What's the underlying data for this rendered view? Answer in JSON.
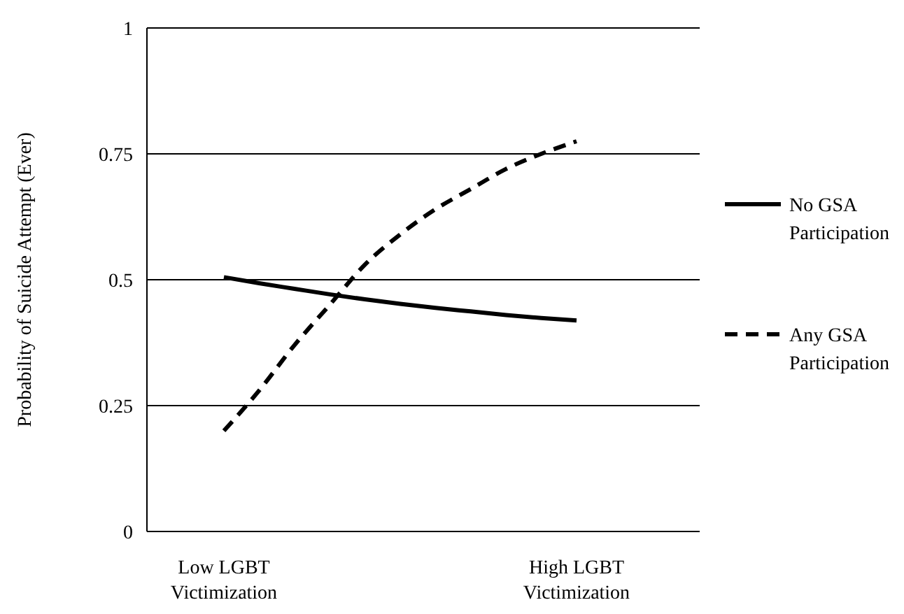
{
  "chart_data": {
    "type": "line",
    "ylabel": "Probability of Suicide Attempt (Ever)",
    "categories": [
      "Low LGBT Victimization",
      null,
      null,
      null,
      null,
      null,
      null,
      null,
      null,
      null,
      "High LGBT Victimization"
    ],
    "ylim": [
      0,
      1
    ],
    "yticks": [
      0,
      0.25,
      0.5,
      0.75,
      1
    ],
    "grid": "y",
    "legend": "right",
    "marker": "none",
    "series": [
      {
        "name": "No GSA Participation",
        "color": "#000000",
        "line_style": "solid",
        "values": [
          0.505,
          0.493,
          0.482,
          0.471,
          0.461,
          0.452,
          0.444,
          0.437,
          0.43,
          0.424,
          0.419
        ]
      },
      {
        "name": "Any GSA Participation",
        "color": "#000000",
        "line_style": "dashed",
        "values": [
          0.2,
          0.28,
          0.37,
          0.45,
          0.53,
          0.59,
          0.64,
          0.68,
          0.72,
          0.75,
          0.775
        ]
      }
    ]
  }
}
